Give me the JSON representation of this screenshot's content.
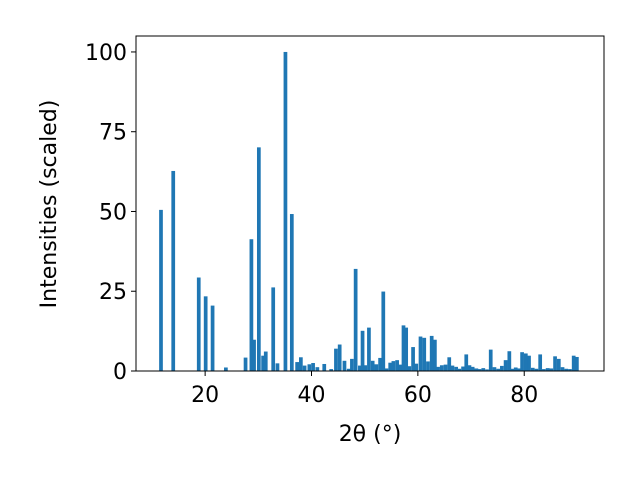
{
  "chart_data": {
    "type": "bar",
    "xlabel": "2θ (°)",
    "ylabel": "Intensities (scaled)",
    "xlim": [
      7,
      95
    ],
    "ylim": [
      0,
      105
    ],
    "xticks": [
      20,
      40,
      60,
      80
    ],
    "yticks": [
      0,
      25,
      50,
      75,
      100
    ],
    "grid": false,
    "bar_color": "#1f77b4",
    "bar_width": 0.7,
    "x": [
      11.7,
      14.0,
      18.8,
      20.1,
      21.4,
      23.9,
      27.6,
      28.7,
      29.2,
      30.1,
      30.9,
      31.4,
      32.8,
      33.6,
      35.1,
      36.3,
      37.3,
      38.0,
      38.7,
      39.6,
      40.3,
      41.1,
      42.4,
      43.7,
      44.6,
      45.3,
      46.2,
      47.0,
      47.6,
      48.3,
      49.1,
      49.6,
      50.1,
      50.8,
      51.5,
      52.2,
      52.9,
      53.5,
      54.1,
      54.8,
      55.4,
      56.1,
      56.7,
      57.3,
      57.8,
      58.4,
      59.1,
      59.7,
      60.5,
      61.2,
      61.9,
      62.6,
      63.2,
      63.8,
      64.5,
      65.2,
      65.9,
      66.5,
      67.2,
      67.8,
      68.5,
      69.1,
      69.7,
      70.3,
      71.0,
      71.6,
      72.3,
      73.0,
      73.7,
      74.4,
      75.1,
      75.8,
      76.5,
      77.2,
      77.8,
      78.4,
      79.0,
      79.6,
      80.3,
      80.9,
      81.6,
      82.3,
      83.0,
      83.7,
      84.4,
      85.1,
      85.8,
      86.5,
      87.2,
      87.9,
      88.6,
      89.3,
      89.9
    ],
    "values": [
      50.5,
      62.7,
      29.3,
      23.4,
      20.5,
      1.1,
      4.2,
      41.3,
      9.8,
      70.1,
      4.8,
      6.1,
      26.2,
      2.4,
      100.0,
      49.2,
      2.8,
      4.3,
      1.7,
      2.1,
      2.5,
      1.2,
      2.2,
      0.6,
      7.0,
      8.3,
      3.2,
      0.7,
      3.8,
      32.0,
      1.7,
      12.6,
      1.8,
      13.6,
      3.2,
      2.1,
      4.1,
      24.9,
      0.8,
      2.6,
      3.1,
      3.4,
      2.0,
      14.3,
      13.6,
      1.5,
      7.5,
      2.3,
      10.8,
      10.4,
      3.0,
      11.0,
      9.8,
      1.3,
      1.8,
      2.0,
      4.3,
      1.7,
      1.3,
      0.7,
      1.4,
      5.2,
      1.8,
      1.3,
      0.8,
      0.6,
      0.9,
      0.5,
      6.7,
      1.2,
      0.7,
      1.6,
      3.4,
      6.2,
      0.7,
      1.1,
      0.8,
      5.9,
      5.5,
      4.8,
      1.0,
      0.7,
      5.2,
      0.6,
      0.9,
      0.8,
      4.6,
      3.8,
      1.2,
      0.7,
      0.6,
      4.8,
      4.4
    ]
  }
}
